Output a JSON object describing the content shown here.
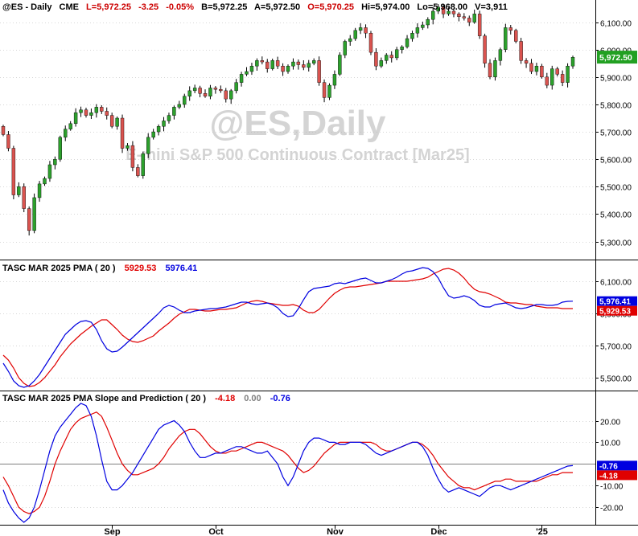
{
  "header": {
    "symbol": "@ES - Daily",
    "exchange": "CME",
    "last": "L=5,972.25",
    "change": "-3.25",
    "change_pct": "-0.05%",
    "bid": "B=5,972.25",
    "ask": "A=5,972.50",
    "open": "O=5,970.25",
    "high": "Hi=5,974.00",
    "low": "Lo=5,968.00",
    "volume": "V=3,911"
  },
  "watermark": {
    "symbol": "@ES,Daily",
    "name": "E-mini S&P 500 Continuous Contract [Mar25]"
  },
  "colors": {
    "up": "#2ca02c",
    "down": "#d9534f",
    "pma": "#e00000",
    "prediction": "#0000e0",
    "last_badge": "#22a022",
    "grid": "#b0b0b0"
  },
  "chart_data": [
    {
      "type": "candlestick",
      "title": "@ES - Daily",
      "yticks": [
        5300,
        5400,
        5500,
        5600,
        5700,
        5800,
        5900,
        6000,
        6100
      ],
      "ytick_labels": [
        "5,300.00",
        "5,400.00",
        "5,500.00",
        "5,600.00",
        "5,700.00",
        "5,800.00",
        "5,900.00",
        "6,000.00",
        "6,100.00"
      ],
      "ylim": [
        5240,
        6175
      ],
      "last_price_label": "5,972.50",
      "last_price": 5972.5,
      "closes": [
        5690,
        5640,
        5470,
        5500,
        5420,
        5340,
        5460,
        5510,
        5530,
        5580,
        5600,
        5680,
        5710,
        5730,
        5770,
        5780,
        5760,
        5770,
        5790,
        5775,
        5760,
        5720,
        5750,
        5640,
        5650,
        5570,
        5540,
        5620,
        5680,
        5700,
        5720,
        5740,
        5760,
        5790,
        5800,
        5830,
        5850,
        5860,
        5840,
        5830,
        5860,
        5855,
        5850,
        5820,
        5850,
        5880,
        5910,
        5920,
        5940,
        5960,
        5955,
        5930,
        5960,
        5940,
        5920,
        5940,
        5955,
        5945,
        5935,
        5950,
        5960,
        5880,
        5825,
        5870,
        5910,
        5980,
        6030,
        6040,
        6070,
        6080,
        6060,
        5990,
        5940,
        5960,
        5980,
        5970,
        6000,
        6010,
        6040,
        6060,
        6080,
        6090,
        6110,
        6140,
        6155,
        6130,
        6140,
        6130,
        6120,
        6115,
        6100,
        6130,
        6050,
        5950,
        5900,
        5960,
        6000,
        6080,
        6070,
        6030,
        5960,
        5950,
        5920,
        5940,
        5900,
        5870,
        5930,
        5910,
        5880,
        5940,
        5972
      ],
      "ohlc_note": "Each candle opens at the previous close; wick ranges are estimated."
    },
    {
      "type": "line",
      "title": "TASC MAR 2025 PMA ( 20 )",
      "legend_values": [
        "5929.53",
        "5976.41"
      ],
      "yticks": [
        5500,
        5700,
        5900,
        6100
      ],
      "ytick_labels": [
        "5,500.00",
        "5,700.00",
        "5,900.00",
        "6,100.00"
      ],
      "ylim": [
        5430,
        6150
      ],
      "badges": [
        {
          "label": "5,976.41",
          "value": 5976.41,
          "color": "#0000e0"
        },
        {
          "label": "5,929.53",
          "value": 5929.53,
          "color": "#e00000"
        }
      ],
      "series": [
        {
          "color": "#e00000",
          "values": [
            5640,
            5610,
            5560,
            5500,
            5465,
            5445,
            5450,
            5470,
            5500,
            5540,
            5580,
            5630,
            5670,
            5710,
            5740,
            5770,
            5795,
            5820,
            5840,
            5860,
            5860,
            5830,
            5800,
            5765,
            5740,
            5725,
            5720,
            5730,
            5745,
            5760,
            5790,
            5815,
            5840,
            5870,
            5895,
            5910,
            5925,
            5925,
            5920,
            5915,
            5915,
            5920,
            5925,
            5925,
            5930,
            5935,
            5950,
            5965,
            5975,
            5980,
            5975,
            5965,
            5960,
            5955,
            5950,
            5950,
            5955,
            5945,
            5920,
            5905,
            5905,
            5925,
            5960,
            5995,
            6025,
            6045,
            6060,
            6065,
            6065,
            6070,
            6075,
            6080,
            6085,
            6090,
            6100,
            6100,
            6100,
            6100,
            6100,
            6105,
            6110,
            6115,
            6125,
            6145,
            6160,
            6175,
            6180,
            6170,
            6150,
            6120,
            6080,
            6050,
            6035,
            6030,
            6020,
            6005,
            5990,
            5970,
            5965,
            5965,
            5960,
            5955,
            5955,
            5945,
            5940,
            5935,
            5935,
            5935,
            5930,
            5930,
            5930
          ]
        },
        {
          "color": "#0000e0",
          "values": [
            5590,
            5540,
            5480,
            5450,
            5440,
            5450,
            5480,
            5520,
            5570,
            5620,
            5670,
            5720,
            5770,
            5800,
            5830,
            5850,
            5855,
            5845,
            5800,
            5730,
            5680,
            5660,
            5665,
            5690,
            5720,
            5750,
            5780,
            5810,
            5840,
            5870,
            5900,
            5935,
            5950,
            5940,
            5920,
            5905,
            5905,
            5915,
            5920,
            5925,
            5930,
            5930,
            5935,
            5940,
            5950,
            5960,
            5970,
            5970,
            5960,
            5955,
            5960,
            5965,
            5955,
            5935,
            5900,
            5880,
            5885,
            5930,
            5985,
            6035,
            6055,
            6060,
            6065,
            6070,
            6085,
            6090,
            6085,
            6095,
            6105,
            6115,
            6120,
            6105,
            6090,
            6090,
            6100,
            6110,
            6125,
            6145,
            6160,
            6165,
            6175,
            6185,
            6180,
            6160,
            6120,
            6060,
            6010,
            5995,
            6000,
            6010,
            6000,
            5980,
            5950,
            5940,
            5940,
            5955,
            5960,
            5965,
            5950,
            5935,
            5930,
            5935,
            5945,
            5955,
            5955,
            5950,
            5950,
            5955,
            5970,
            5975,
            5976
          ]
        }
      ]
    },
    {
      "type": "line",
      "title": "TASC MAR 2025 PMA Slope and Prediction ( 20 )",
      "legend_values": [
        "-4.18",
        "0.00",
        "-0.76"
      ],
      "yticks": [
        -20,
        -10,
        10,
        20
      ],
      "ytick_labels": [
        "-20.00",
        "-10.00",
        "10.00",
        "20.00"
      ],
      "zero_line": 0,
      "ylim": [
        -27,
        28
      ],
      "badges": [
        {
          "label": "-0.76",
          "value": -0.76,
          "color": "#0000e0"
        },
        {
          "label": "-4.18",
          "value": -4.18,
          "color": "#e00000"
        }
      ],
      "series": [
        {
          "color": "#e00000",
          "values": [
            -6,
            -10,
            -15,
            -20,
            -22,
            -23,
            -22,
            -20,
            -15,
            -8,
            0,
            6,
            11,
            16,
            19,
            21,
            22,
            23,
            24,
            22,
            17,
            11,
            5,
            0,
            -3,
            -5,
            -5,
            -4,
            -3,
            -2,
            0,
            3,
            7,
            10,
            13,
            15,
            16,
            16,
            14,
            11,
            8,
            6,
            5,
            5,
            6,
            6,
            7,
            8,
            9,
            10,
            10,
            9,
            8,
            7,
            6,
            4,
            1,
            -2,
            -4,
            -3,
            -1,
            2,
            5,
            7,
            9,
            10,
            10,
            10,
            10,
            10,
            10,
            10,
            9,
            7,
            6,
            6,
            7,
            8,
            9,
            10,
            10,
            9,
            7,
            4,
            0,
            -3,
            -6,
            -8,
            -10,
            -11,
            -11,
            -12,
            -11,
            -10,
            -9,
            -8,
            -8,
            -7,
            -7,
            -8,
            -8,
            -8,
            -8,
            -8,
            -7,
            -6,
            -5,
            -5,
            -4,
            -4,
            -4
          ]
        },
        {
          "color": "#0000e0",
          "values": [
            -12,
            -18,
            -22,
            -25,
            -27,
            -25,
            -20,
            -12,
            -3,
            6,
            13,
            17,
            20,
            23,
            26,
            28,
            27,
            22,
            13,
            2,
            -8,
            -12,
            -12,
            -10,
            -7,
            -4,
            0,
            4,
            8,
            12,
            16,
            18,
            19,
            20,
            18,
            15,
            10,
            6,
            3,
            3,
            4,
            5,
            5,
            6,
            7,
            8,
            8,
            7,
            6,
            5,
            5,
            6,
            3,
            0,
            -6,
            -10,
            -6,
            0,
            6,
            10,
            12,
            12,
            11,
            10,
            10,
            9,
            9,
            10,
            10,
            10,
            9,
            7,
            5,
            4,
            5,
            6,
            7,
            8,
            9,
            10,
            10,
            8,
            4,
            -2,
            -7,
            -11,
            -13,
            -12,
            -11,
            -12,
            -13,
            -14,
            -15,
            -13,
            -11,
            -10,
            -10,
            -11,
            -12,
            -11,
            -10,
            -9,
            -8,
            -7,
            -6,
            -5,
            -4,
            -3,
            -2,
            -1,
            -0.76
          ]
        }
      ]
    }
  ],
  "xaxis": {
    "ticks": [
      {
        "label": "Sep",
        "index": 21
      },
      {
        "label": "Oct",
        "index": 41
      },
      {
        "label": "Nov",
        "index": 64
      },
      {
        "label": "Dec",
        "index": 84
      },
      {
        "label": "'25",
        "index": 104
      }
    ]
  }
}
